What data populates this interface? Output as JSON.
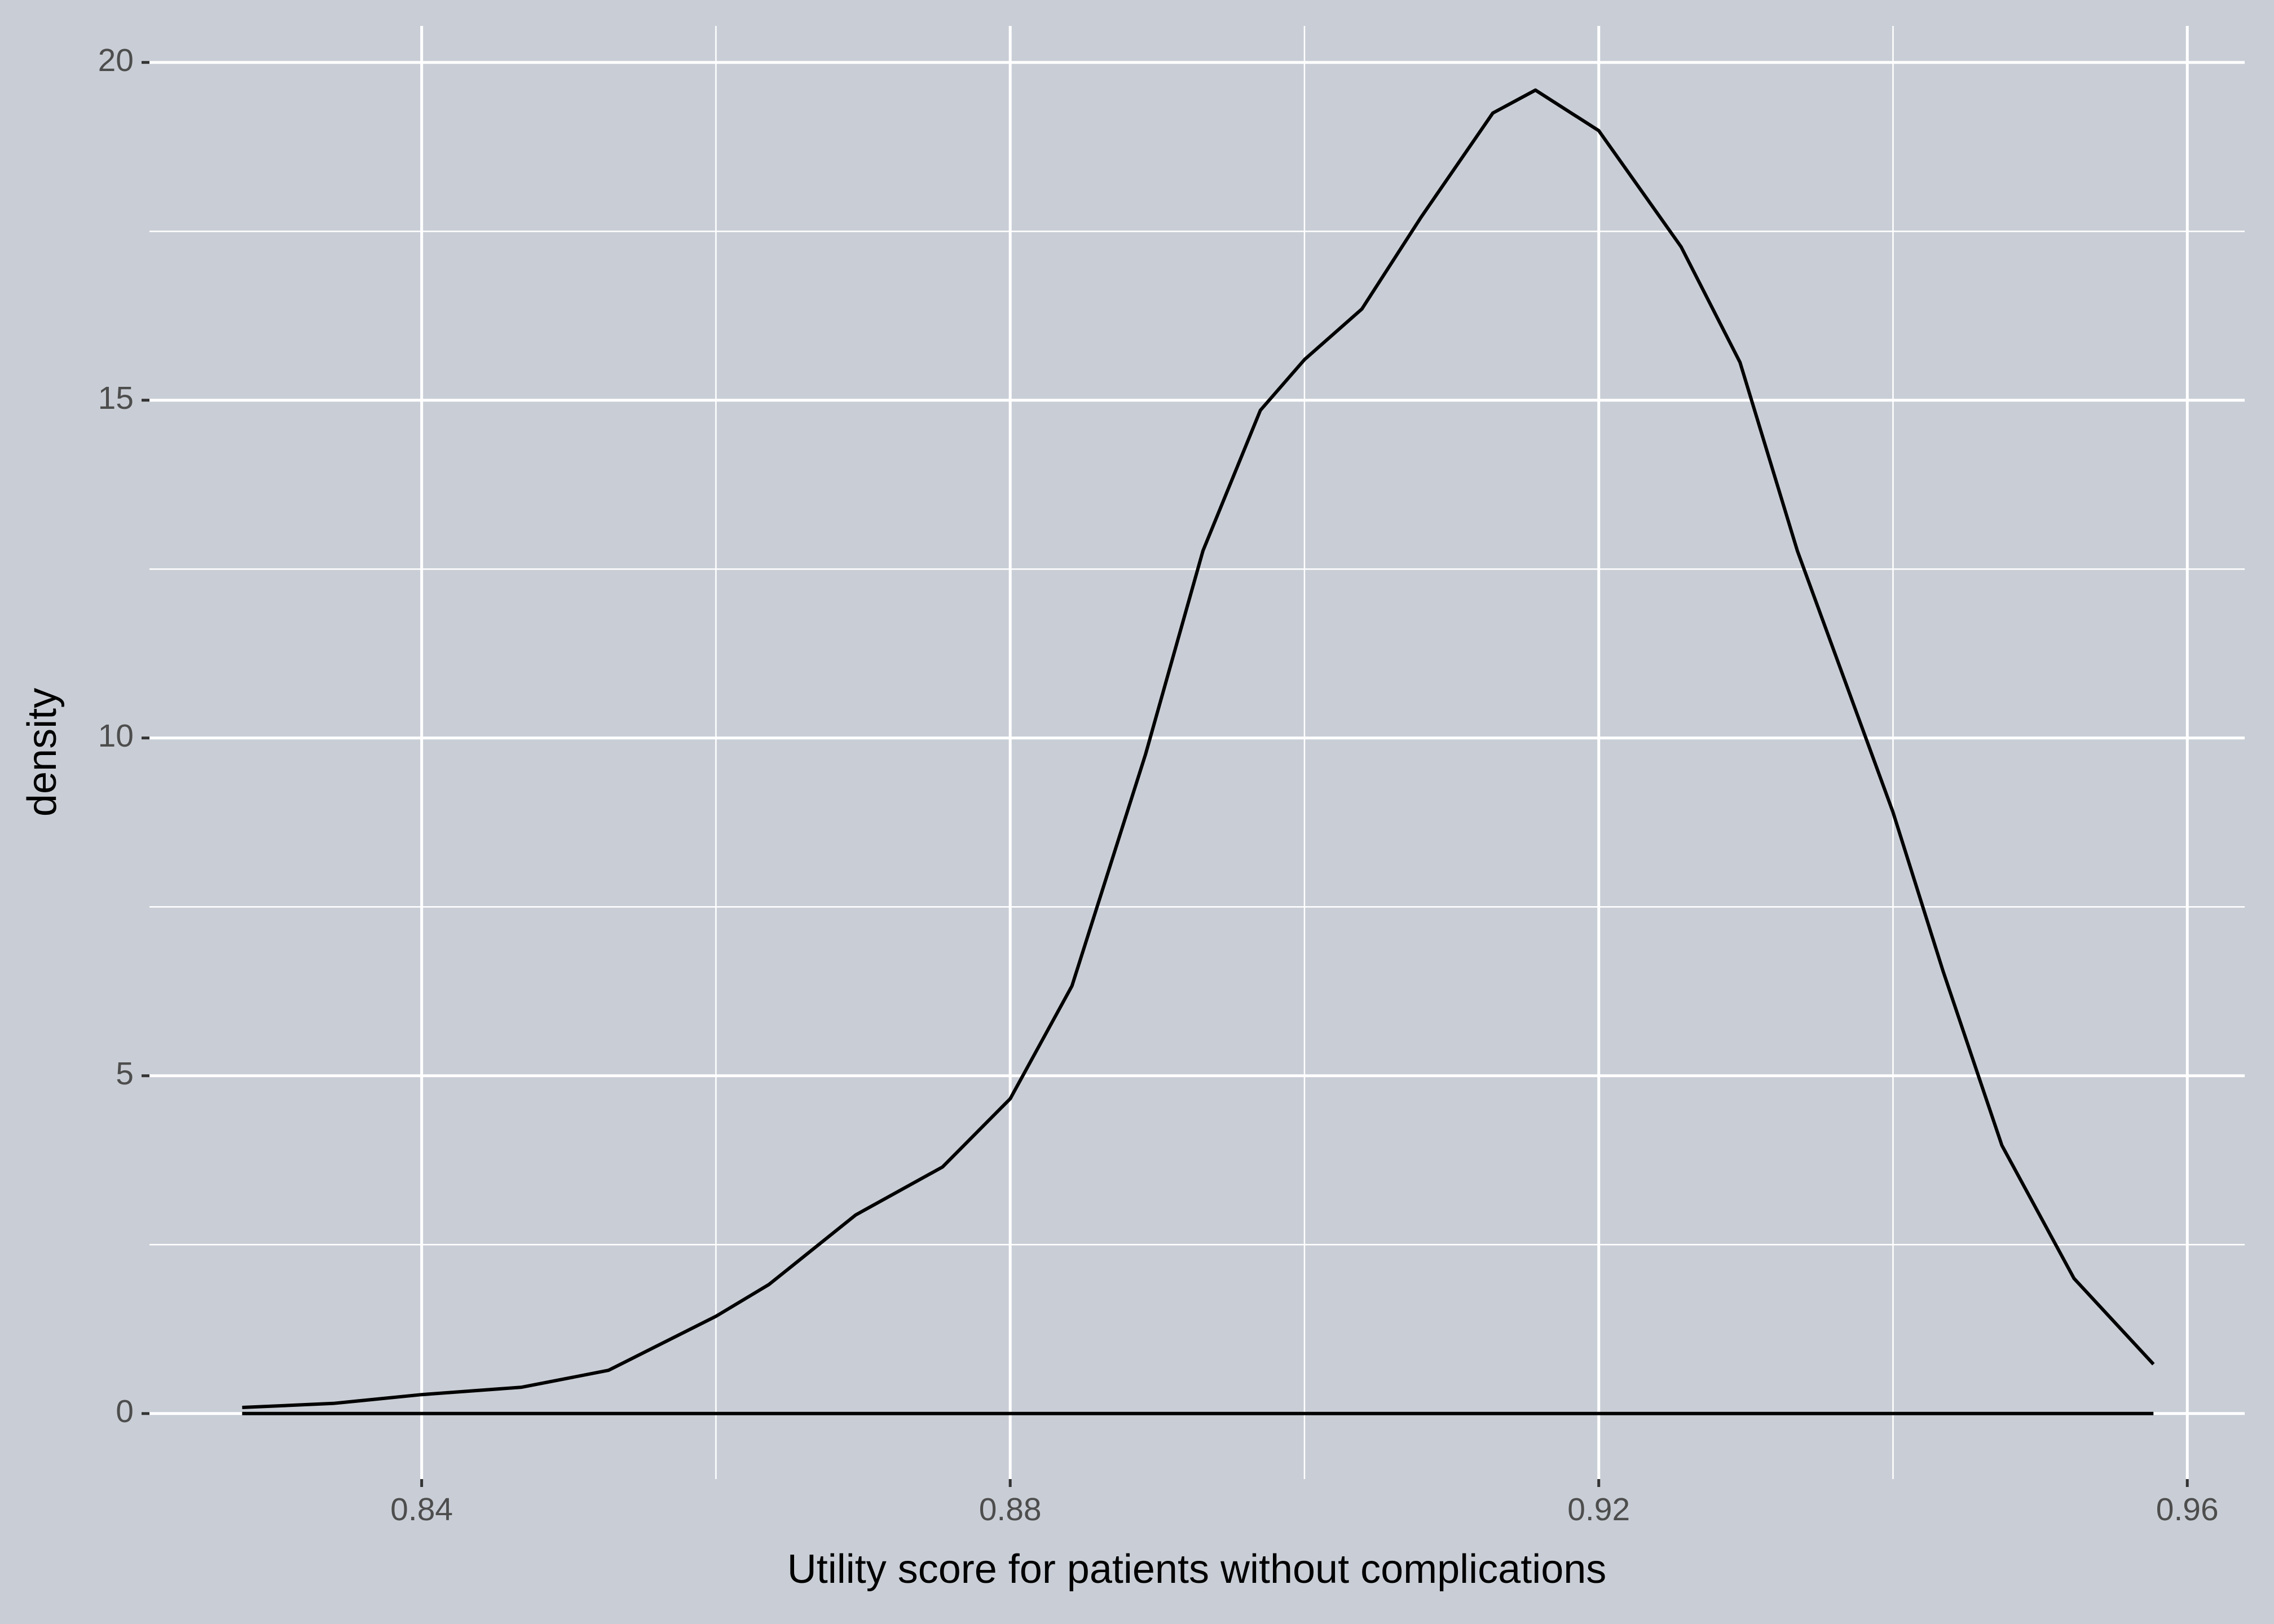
{
  "chart_data": {
    "type": "density",
    "xlabel": "Utility score for patients without complications",
    "ylabel": "density",
    "x": [
      0.8278,
      0.834,
      0.84,
      0.8468,
      0.8527,
      0.86,
      0.8636,
      0.8695,
      0.8754,
      0.88,
      0.8842,
      0.8892,
      0.8931,
      0.897,
      0.9,
      0.9039,
      0.9079,
      0.9128,
      0.9157,
      0.92,
      0.9256,
      0.9296,
      0.9335,
      0.94,
      0.9434,
      0.9474,
      0.9523,
      0.9577
    ],
    "values": [
      0.09,
      0.15,
      0.28,
      0.39,
      0.64,
      1.44,
      1.91,
      2.94,
      3.65,
      4.66,
      6.33,
      9.76,
      12.77,
      14.85,
      15.6,
      16.35,
      17.7,
      19.25,
      19.59,
      18.99,
      17.27,
      15.56,
      12.77,
      8.9,
      6.55,
      3.97,
      2.0,
      0.73
    ],
    "color": "#000000",
    "background": "#c9ced6",
    "xlim": [
      0.8215,
      0.9639
    ],
    "ylim": [
      -0.97,
      20.54
    ],
    "xticks": [
      {
        "value": 0.84,
        "label": "0.84"
      },
      {
        "value": 0.88,
        "label": "0.88"
      },
      {
        "value": 0.92,
        "label": "0.92"
      },
      {
        "value": 0.96,
        "label": "0.96"
      }
    ],
    "yticks": [
      0,
      5,
      10,
      15,
      20
    ],
    "xminor": [
      0.86,
      0.9,
      0.94
    ],
    "yminor": [
      2.5,
      7.5,
      12.5,
      17.5
    ],
    "grid": true
  }
}
